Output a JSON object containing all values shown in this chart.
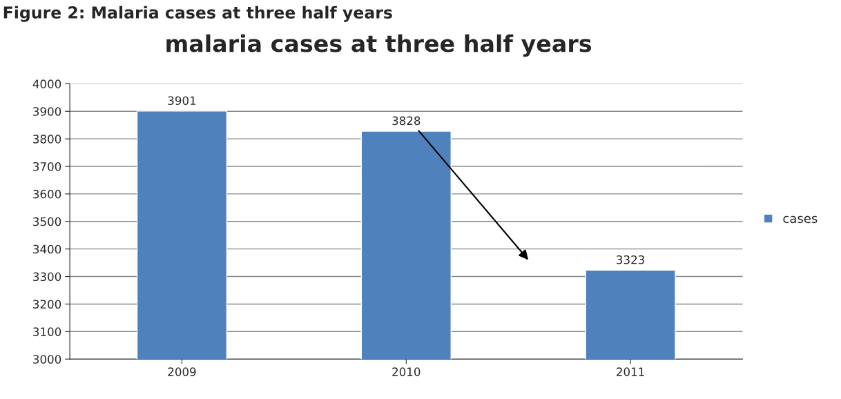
{
  "chart_data": {
    "type": "bar",
    "title": "malaria cases at three half years",
    "annotations": [
      "Figure 2: Malaria cases at three half years"
    ],
    "categories": [
      "2009",
      "2010",
      "2011"
    ],
    "series": [
      {
        "name": "cases",
        "color": "#4f81bd",
        "values": [
          3901,
          3828,
          3323
        ]
      }
    ],
    "ylim": [
      3000,
      4000
    ],
    "yticks": [
      3000,
      3100,
      3200,
      3300,
      3400,
      3500,
      3600,
      3700,
      3800,
      3900,
      4000
    ],
    "grid": "y",
    "legend": "right",
    "data_labels": true
  }
}
